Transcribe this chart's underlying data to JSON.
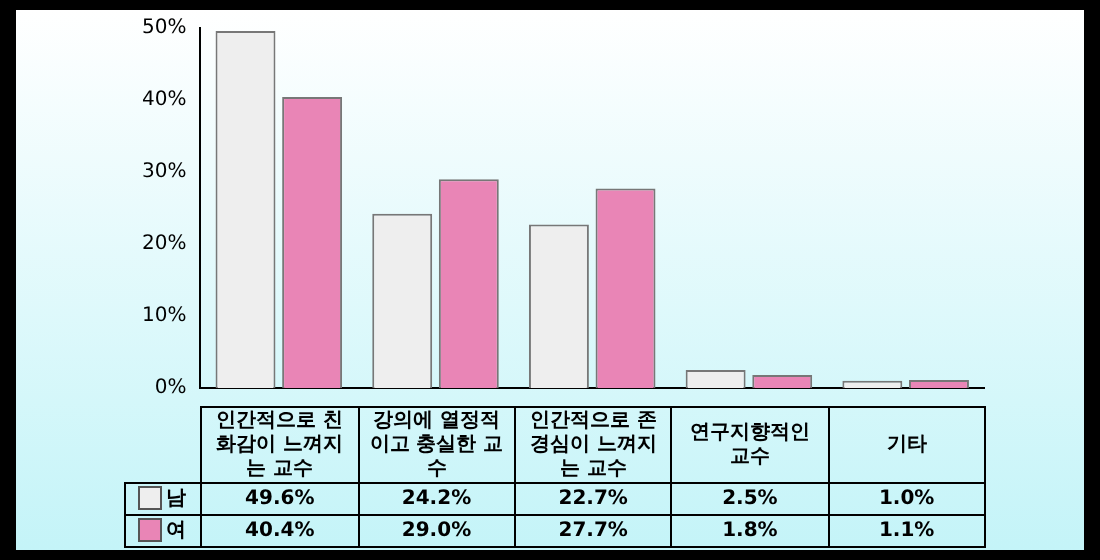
{
  "chart_data": {
    "type": "bar",
    "categories": [
      "인간적으로 친화감이 느껴지는 교수",
      "강의에 열정적이고 충실한 교수",
      "인간적으로 존경심이 느껴지는 교수",
      "연구지향적인 교수",
      "기타"
    ],
    "series": [
      {
        "name": "남",
        "color": "#eeeeee",
        "values": [
          49.6,
          24.2,
          22.7,
          2.5,
          1.0
        ],
        "value_labels": [
          "49.6%",
          "24.2%",
          "22.7%",
          "2.5%",
          "1.0%"
        ]
      },
      {
        "name": "여",
        "color": "#e985b6",
        "values": [
          40.4,
          29.0,
          27.7,
          1.8,
          1.1
        ],
        "value_labels": [
          "40.4%",
          "29.0%",
          "27.7%",
          "1.8%",
          "1.1%"
        ]
      }
    ],
    "ylim": [
      0,
      50
    ],
    "yticks": [
      {
        "value": 0,
        "label": "0%"
      },
      {
        "value": 10,
        "label": "10%"
      },
      {
        "value": 20,
        "label": "20%"
      },
      {
        "value": 30,
        "label": "30%"
      },
      {
        "value": 40,
        "label": "40%"
      },
      {
        "value": 50,
        "label": "50%"
      }
    ],
    "grid": false,
    "legend": "bottom left"
  }
}
